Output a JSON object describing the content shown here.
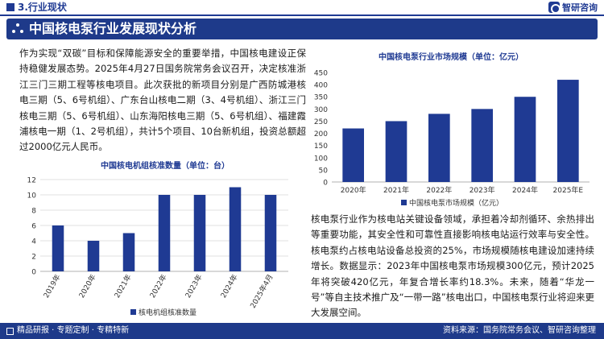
{
  "header": {
    "section": "3.行业现状",
    "brand": "智研咨询"
  },
  "title": "中国核电泵行业发展现状分析",
  "para_left": "作为实现“双碳”目标和保障能源安全的重要举措，中国核电建设正保持稳健发展态势。2025年4月27日国务院常务会议召开，决定核准浙江三门三期工程等核电项目。此次获批的新项目分别是广西防城港核电三期（5、6号机组）、广东台山核电二期（3、4号机组）、浙江三门核电三期（5、6号机组）、山东海阳核电三期（5、6号机组）、福建霞浦核电一期（1、2号机组），共计5个项目、10台新机组，投资总额超过2000亿元人民币。",
  "para_right": "核电泵行业作为核电站关键设备领域，承担着冷却剂循环、余热排出等重要功能，其安全性和可靠性直接影响核电站运行效率与安全性。核电泵约占核电站设备总投资的25%，市场规模随核电建设加速持续增长。数据显示：2023年中国核电泵市场规模300亿元，预计2025年将突破420亿元，年复合增长率约18.3%。未来，随着“华龙一号”等自主技术推广及“一带一路”核电出口，中国核电泵行业将迎来更大发展空间。",
  "footer": {
    "left": "精品研报 · 专题定制 · 专精特新",
    "right": "资料来源：国务院常务会议、智研咨询整理"
  },
  "watermark": "智研咨询",
  "colors": {
    "primary": "#1e3a8a",
    "bar": "#1f3a93"
  },
  "chart_data": [
    {
      "type": "bar",
      "title": "中国核电泵行业市场规模（单位：亿元）",
      "categories": [
        "2020年",
        "2021年",
        "2022年",
        "2023年",
        "2024年",
        "2025年E"
      ],
      "series": [
        {
          "name": "中国核电泵市场规模（亿元）",
          "values": [
            220,
            250,
            280,
            300,
            350,
            420
          ]
        }
      ],
      "ylim": [
        0,
        450
      ],
      "yticks": [
        0,
        50,
        100,
        150,
        200,
        250,
        300,
        350,
        400,
        450
      ],
      "grid": false,
      "legend": "bottom"
    },
    {
      "type": "bar",
      "title": "中国核电机组核准数量（单位：台）",
      "categories": [
        "2019年",
        "2020年",
        "2021年",
        "2022年",
        "2023年",
        "2024年",
        "2025年4月"
      ],
      "series": [
        {
          "name": "核电机组核准数量",
          "values": [
            6,
            4,
            5,
            10,
            10,
            11,
            10
          ]
        }
      ],
      "ylim": [
        0,
        12
      ],
      "yticks": [
        0,
        2,
        4,
        6,
        8,
        10,
        12
      ],
      "grid": true,
      "legend": "bottom"
    }
  ]
}
